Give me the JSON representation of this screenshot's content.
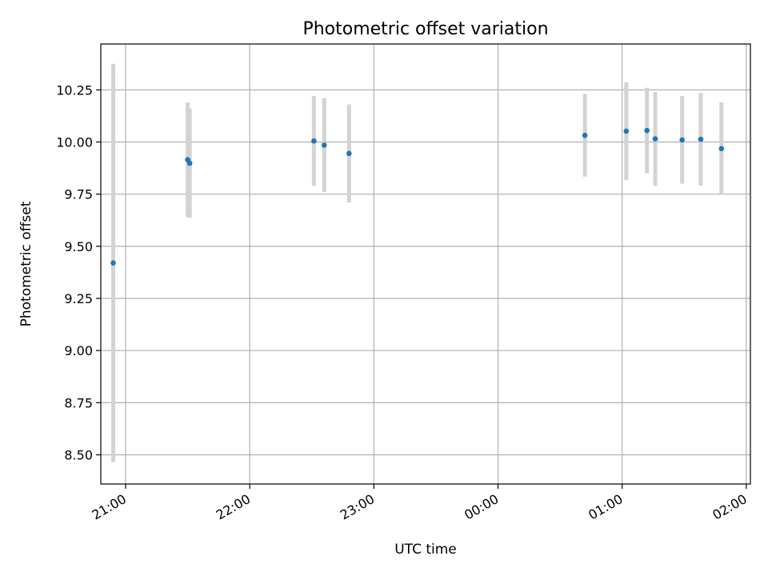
{
  "chart_data": {
    "type": "scatter",
    "title": "Photometric offset variation",
    "xlabel": "UTC time",
    "ylabel": "Photometric offset",
    "xlim": [
      "2000-01-01T20:48:00",
      "2000-01-02T02:02:00"
    ],
    "ylim": [
      8.36,
      10.47
    ],
    "grid": true,
    "x_ticks": [
      {
        "value": "2000-01-01T21:00:00",
        "label": "21:00"
      },
      {
        "value": "2000-01-01T22:00:00",
        "label": "22:00"
      },
      {
        "value": "2000-01-01T23:00:00",
        "label": "23:00"
      },
      {
        "value": "2000-01-02T00:00:00",
        "label": "00:00"
      },
      {
        "value": "2000-01-02T01:00:00",
        "label": "01:00"
      },
      {
        "value": "2000-01-02T02:00:00",
        "label": "02:00"
      }
    ],
    "y_ticks": [
      {
        "value": 8.5,
        "label": "8.50"
      },
      {
        "value": 8.75,
        "label": "8.75"
      },
      {
        "value": 9.0,
        "label": "9.00"
      },
      {
        "value": 9.25,
        "label": "9.25"
      },
      {
        "value": 9.5,
        "label": "9.50"
      },
      {
        "value": 9.75,
        "label": "9.75"
      },
      {
        "value": 10.0,
        "label": "10.00"
      },
      {
        "value": 10.25,
        "label": "10.25"
      }
    ],
    "series": [
      {
        "marker_color": "#1f77b4",
        "errorbar_color": "#d3d3d3",
        "points": [
          {
            "x": "2000-01-01T20:54:00",
            "y": 9.42,
            "err": 0.955
          },
          {
            "x": "2000-01-01T21:30:00",
            "y": 9.915,
            "err": 0.275
          },
          {
            "x": "2000-01-01T21:31:00",
            "y": 9.898,
            "err": 0.262
          },
          {
            "x": "2000-01-01T22:31:00",
            "y": 10.005,
            "err": 0.215
          },
          {
            "x": "2000-01-01T22:36:00",
            "y": 9.985,
            "err": 0.225
          },
          {
            "x": "2000-01-01T22:48:00",
            "y": 9.945,
            "err": 0.235
          },
          {
            "x": "2000-01-02T00:42:00",
            "y": 10.032,
            "err": 0.198
          },
          {
            "x": "2000-01-02T01:02:00",
            "y": 10.052,
            "err": 0.235
          },
          {
            "x": "2000-01-02T01:12:00",
            "y": 10.055,
            "err": 0.205
          },
          {
            "x": "2000-01-02T01:16:00",
            "y": 10.015,
            "err": 0.225
          },
          {
            "x": "2000-01-02T01:29:00",
            "y": 10.01,
            "err": 0.21
          },
          {
            "x": "2000-01-02T01:38:00",
            "y": 10.013,
            "err": 0.222
          },
          {
            "x": "2000-01-02T01:48:00",
            "y": 9.968,
            "err": 0.222
          }
        ]
      }
    ]
  }
}
